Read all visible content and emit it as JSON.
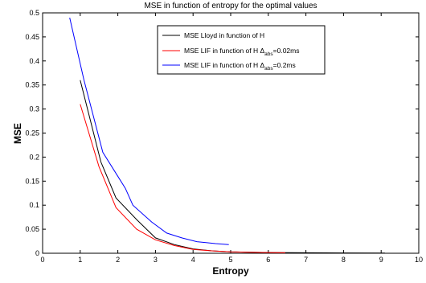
{
  "chart_data": {
    "type": "line",
    "title": "MSE in function of entropy for the optimal values",
    "xlabel": "Entropy",
    "ylabel": "MSE",
    "xlim": [
      0,
      10
    ],
    "ylim": [
      0,
      0.5
    ],
    "xticks": [
      0,
      1,
      2,
      3,
      4,
      5,
      6,
      7,
      8,
      9,
      10
    ],
    "yticks": [
      0,
      0.05,
      0.1,
      0.15,
      0.2,
      0.25,
      0.3,
      0.35,
      0.4,
      0.45,
      0.5
    ],
    "grid": false,
    "legend_position": "top-center",
    "series": [
      {
        "name": "MSE Lloyd in function of H",
        "color": "#000000",
        "x": [
          1.0,
          1.55,
          1.95,
          2.5,
          3.0,
          3.5,
          4.0,
          4.5,
          5.0,
          6.0,
          7.0,
          8.0,
          9.1
        ],
        "y": [
          0.36,
          0.19,
          0.115,
          0.07,
          0.032,
          0.018,
          0.009,
          0.005,
          0.003,
          0.0015,
          0.001,
          0.0006,
          0.0004
        ]
      },
      {
        "name": "MSE LIF in function of H",
        "name_sub": "abs",
        "name_suffix": "=0.02ms",
        "color": "#ff0000",
        "x": [
          1.0,
          1.5,
          1.95,
          2.5,
          3.0,
          3.5,
          4.0,
          4.5,
          5.0,
          5.5,
          6.0,
          6.45
        ],
        "y": [
          0.31,
          0.18,
          0.095,
          0.05,
          0.028,
          0.016,
          0.008,
          0.005,
          0.003,
          0.002,
          0.0015,
          0.001
        ]
      },
      {
        "name": "MSE LIF in function of H",
        "name_sub": "abs",
        "name_suffix": "=0.2ms",
        "color": "#0000ff",
        "x": [
          0.72,
          1.1,
          1.6,
          2.0,
          2.2,
          2.4,
          2.9,
          3.3,
          3.7,
          4.1,
          4.6,
          4.95
        ],
        "y": [
          0.49,
          0.36,
          0.21,
          0.16,
          0.135,
          0.1,
          0.065,
          0.042,
          0.032,
          0.024,
          0.02,
          0.018
        ]
      }
    ]
  }
}
